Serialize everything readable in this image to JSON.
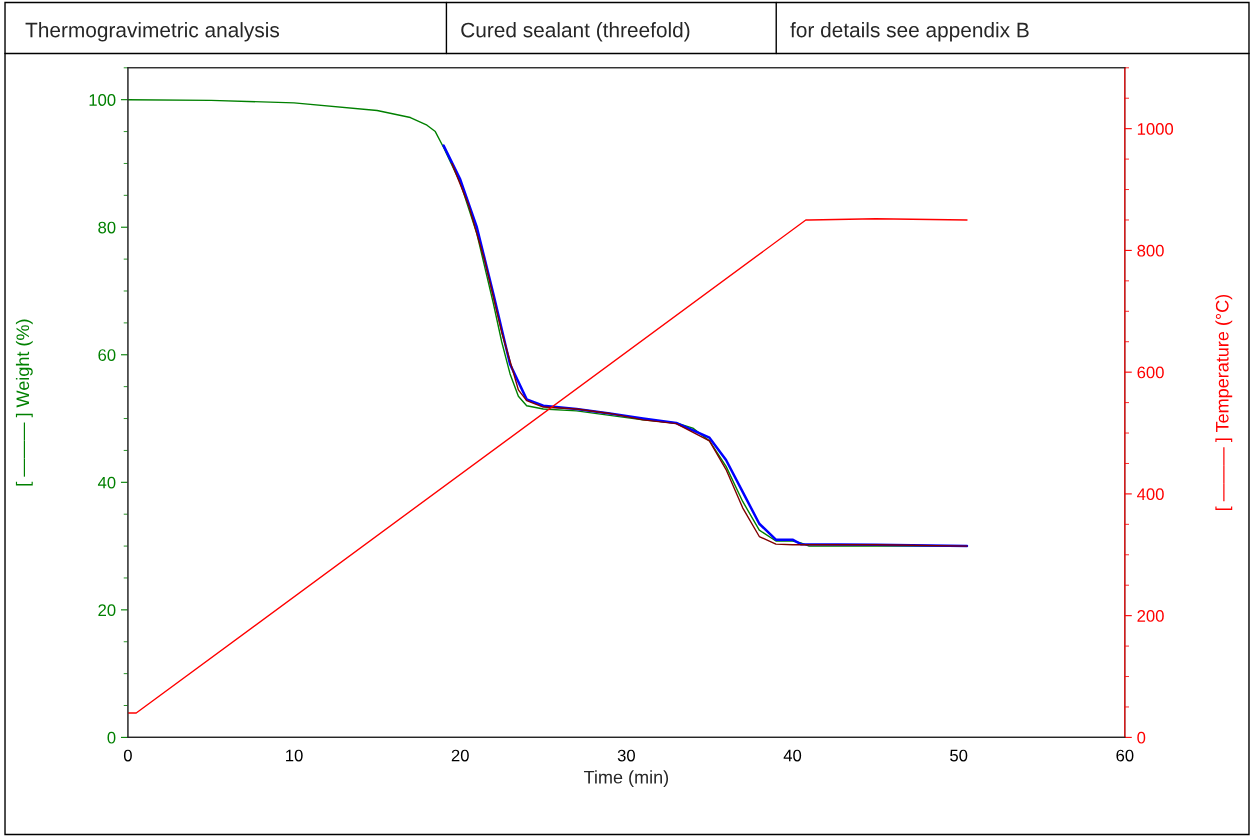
{
  "chart_data": {
    "type": "line",
    "title": "Thermogravimetric analysis",
    "subtitle": "Cured sealant (threefold)",
    "annotations": [
      "for details see appendix B"
    ],
    "xlabel": "Time (min)",
    "ylabel": "[ ——— ] Weight (%)",
    "y2label": "[ ——— ] Temperature (°C)",
    "xlim": [
      0,
      60
    ],
    "xticks": [
      0,
      10,
      20,
      30,
      40,
      50,
      60
    ],
    "ylim": [
      0,
      105
    ],
    "yticks": [
      0,
      20,
      40,
      60,
      80,
      100
    ],
    "y2lim": [
      0,
      1100
    ],
    "y2ticks": [
      0,
      200,
      400,
      600,
      800,
      1000
    ],
    "grid": false,
    "line_style": "solid",
    "series": [
      {
        "color": "#008000",
        "x": [
          0,
          5,
          10,
          15,
          17,
          18,
          18.5,
          19,
          20,
          21,
          22,
          22.5,
          23,
          23.5,
          24,
          25,
          27,
          29,
          31,
          33,
          34,
          35,
          36,
          37,
          38,
          39,
          40,
          40.5,
          41,
          45,
          50.5
        ],
        "values": [
          100,
          99.9,
          99.5,
          98.3,
          97.2,
          96,
          95,
          92.5,
          87,
          79,
          68,
          62,
          57,
          53.5,
          52,
          51.5,
          51.2,
          50.5,
          49.8,
          49.3,
          48.5,
          46.5,
          42.5,
          37,
          32.5,
          30.8,
          30.8,
          30.5,
          30,
          30,
          30
        ]
      },
      {
        "color": "#0000ff",
        "x": [
          19,
          20,
          21,
          22,
          23,
          24,
          25,
          27,
          29,
          31,
          33,
          35,
          36,
          37,
          38,
          39,
          40,
          40.5,
          45,
          50.5
        ],
        "values": [
          92.8,
          87.5,
          80,
          69.5,
          58.5,
          53,
          52,
          51.5,
          50.8,
          50,
          49.3,
          47,
          43.5,
          38.5,
          33.5,
          31,
          31,
          30.3,
          30.2,
          30
        ]
      },
      {
        "color": "#800000",
        "x": [
          19.5,
          20.5,
          21.5,
          22.5,
          23.5,
          24,
          25,
          27,
          29,
          31,
          33,
          35,
          36,
          37,
          38,
          39,
          40,
          41,
          45,
          50.5
        ],
        "values": [
          90,
          83.5,
          74.5,
          63.5,
          54.5,
          52.8,
          51.8,
          51.5,
          50.8,
          49.8,
          49.2,
          46.5,
          42,
          36,
          31.5,
          30.3,
          30.2,
          30.2,
          30.2,
          30
        ]
      },
      {
        "color": "#ff0000",
        "axis": "y2",
        "x": [
          0,
          0.5,
          40.8,
          41,
          45,
          50.5
        ],
        "values": [
          40,
          40,
          850,
          850,
          852,
          850
        ]
      }
    ]
  }
}
